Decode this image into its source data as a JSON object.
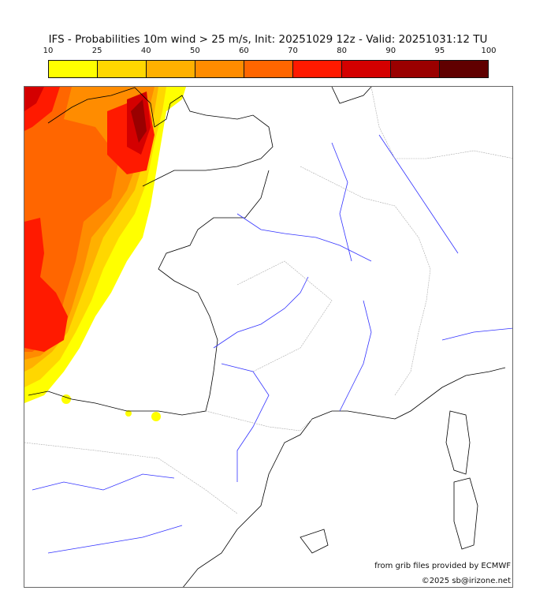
{
  "title": "IFS - Probabilities 10m wind > 25 m/s, Init: 20251029 12z - Valid: 20251031:12 TU",
  "colorbar": {
    "ticks": [
      "10",
      "25",
      "40",
      "50",
      "60",
      "70",
      "80",
      "90",
      "95",
      "100"
    ],
    "colors": [
      "#ffff00",
      "#ffd700",
      "#ffb000",
      "#ff8c00",
      "#ff6600",
      "#ff1a00",
      "#d40000",
      "#9a0000",
      "#600000"
    ]
  },
  "credits": {
    "source": "from grib files provided by ECMWF",
    "copyright": "©2025 sb@irizone.net"
  }
}
